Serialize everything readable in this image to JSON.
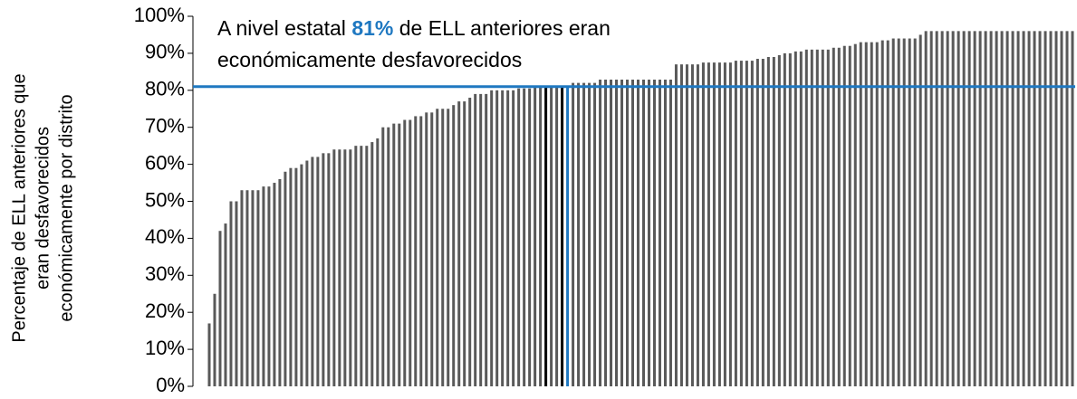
{
  "chart_data": {
    "type": "bar",
    "annotation": [
      "A nivel estatal ",
      "81%",
      " de ELL anteriores eran",
      "económicamente desfavorecidos"
    ],
    "y_label": [
      "Percentaje de ELL anteriores que",
      "eran desfavorecidos",
      "económicamente por distrito"
    ],
    "reference_line": 81,
    "reference_color": "#1f78c1",
    "color": "#595959",
    "highlights": [
      {
        "index": 62,
        "color": "#000000"
      },
      {
        "index": 65,
        "color": "#000000"
      },
      {
        "index": 66,
        "color": "#1f78c1"
      }
    ],
    "values": [
      17,
      25,
      42,
      44,
      50,
      50,
      53,
      53,
      53,
      53,
      54,
      54,
      55,
      56,
      58,
      59,
      59,
      60,
      61,
      62,
      62,
      63,
      63,
      64,
      64,
      64,
      64,
      65,
      65,
      65,
      66,
      67,
      70,
      70,
      71,
      71,
      72,
      72,
      73,
      73,
      74,
      74,
      75,
      75,
      75,
      76,
      77,
      77,
      78,
      79,
      79,
      79,
      80,
      80,
      80,
      80,
      80,
      80.5,
      80.5,
      80.5,
      81,
      81,
      81,
      81,
      81,
      81,
      81,
      82,
      82,
      82,
      82,
      82,
      83,
      83,
      83,
      83,
      84,
      85.5,
      86,
      86,
      86,
      86,
      86.5,
      86.5,
      87,
      87,
      87,
      87,
      87,
      87,
      87,
      87.5,
      87.5,
      87.5,
      87.5,
      87.5,
      87.5,
      88,
      88,
      88,
      88,
      88.5,
      88.5,
      89,
      89,
      89.5,
      90,
      90,
      90.5,
      90.5,
      91,
      91,
      91,
      91,
      91,
      91.5,
      91.5,
      92,
      92,
      92.5,
      93,
      93,
      93,
      93,
      93.5,
      93.5,
      94,
      94,
      94,
      94,
      94,
      95,
      96,
      96,
      96,
      96,
      96,
      96,
      96,
      96,
      96,
      96,
      96,
      96,
      96,
      96,
      96,
      96,
      96,
      96,
      96,
      96,
      96,
      96,
      96,
      96,
      96,
      96,
      96,
      96
    ],
    "ylim": [
      0,
      100
    ],
    "yticks": [
      {
        "value": 0,
        "label": "0%"
      },
      {
        "value": 10,
        "label": "10%"
      },
      {
        "value": 20,
        "label": "20%"
      },
      {
        "value": 30,
        "label": "30%"
      },
      {
        "value": 40,
        "label": "40%"
      },
      {
        "value": 50,
        "label": "50%"
      },
      {
        "value": 60,
        "label": "60%"
      },
      {
        "value": 70,
        "label": "70%"
      },
      {
        "value": 80,
        "label": "80%"
      },
      {
        "value": 90,
        "label": "90%"
      },
      {
        "value": 100,
        "label": "100%"
      }
    ]
  }
}
